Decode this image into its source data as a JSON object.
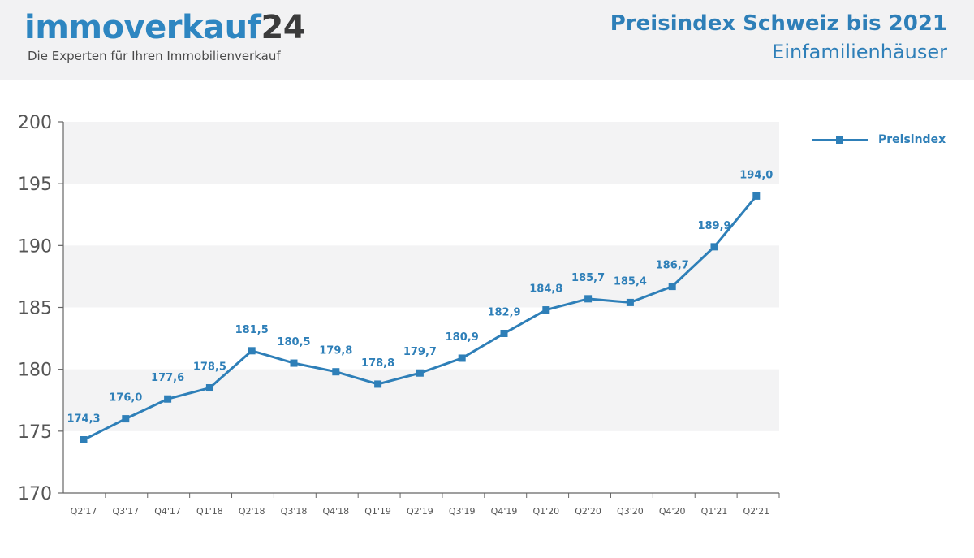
{
  "header": {
    "brand_part1": "immoverkauf",
    "brand_part2": "24",
    "tagline": "Die Experten für Ihren Immobilienverkauf",
    "title": "Preisindex Schweiz bis 2021",
    "subtitle": "Einfamilienhäuser"
  },
  "colors": {
    "accent": "#2e7fb8",
    "band": "#f3f3f4",
    "axis": "#666666",
    "header_bg": "#f2f2f3"
  },
  "chart_data": {
    "type": "line",
    "title": "Preisindex Schweiz bis 2021",
    "subtitle": "Einfamilienhäuser",
    "xlabel": "",
    "ylabel": "",
    "ylim": [
      170,
      200
    ],
    "yticks": [
      "200",
      "195",
      "190",
      "185",
      "180",
      "175",
      "170"
    ],
    "grid": "alternating horizontal bands",
    "legend_position": "top-right",
    "categories": [
      "Q2'17",
      "Q3'17",
      "Q4'17",
      "Q1'18",
      "Q2'18",
      "Q3'18",
      "Q4'18",
      "Q1'19",
      "Q2'19",
      "Q3'19",
      "Q4'19",
      "Q1'20",
      "Q2'20",
      "Q3'20",
      "Q4'20",
      "Q1'21",
      "Q2'21"
    ],
    "series": [
      {
        "name": "Preisindex",
        "values": [
          174.3,
          176.0,
          177.6,
          178.5,
          181.5,
          180.5,
          179.8,
          178.8,
          179.7,
          180.9,
          182.9,
          184.8,
          185.7,
          185.4,
          186.7,
          189.9,
          194.0
        ],
        "labels": [
          "174,3",
          "176,0",
          "177,6",
          "178,5",
          "181,5",
          "180,5",
          "179,8",
          "178,8",
          "179,7",
          "180,9",
          "182,9",
          "184,8",
          "185,7",
          "185,4",
          "186,7",
          "189,9",
          "194,0"
        ]
      }
    ]
  }
}
